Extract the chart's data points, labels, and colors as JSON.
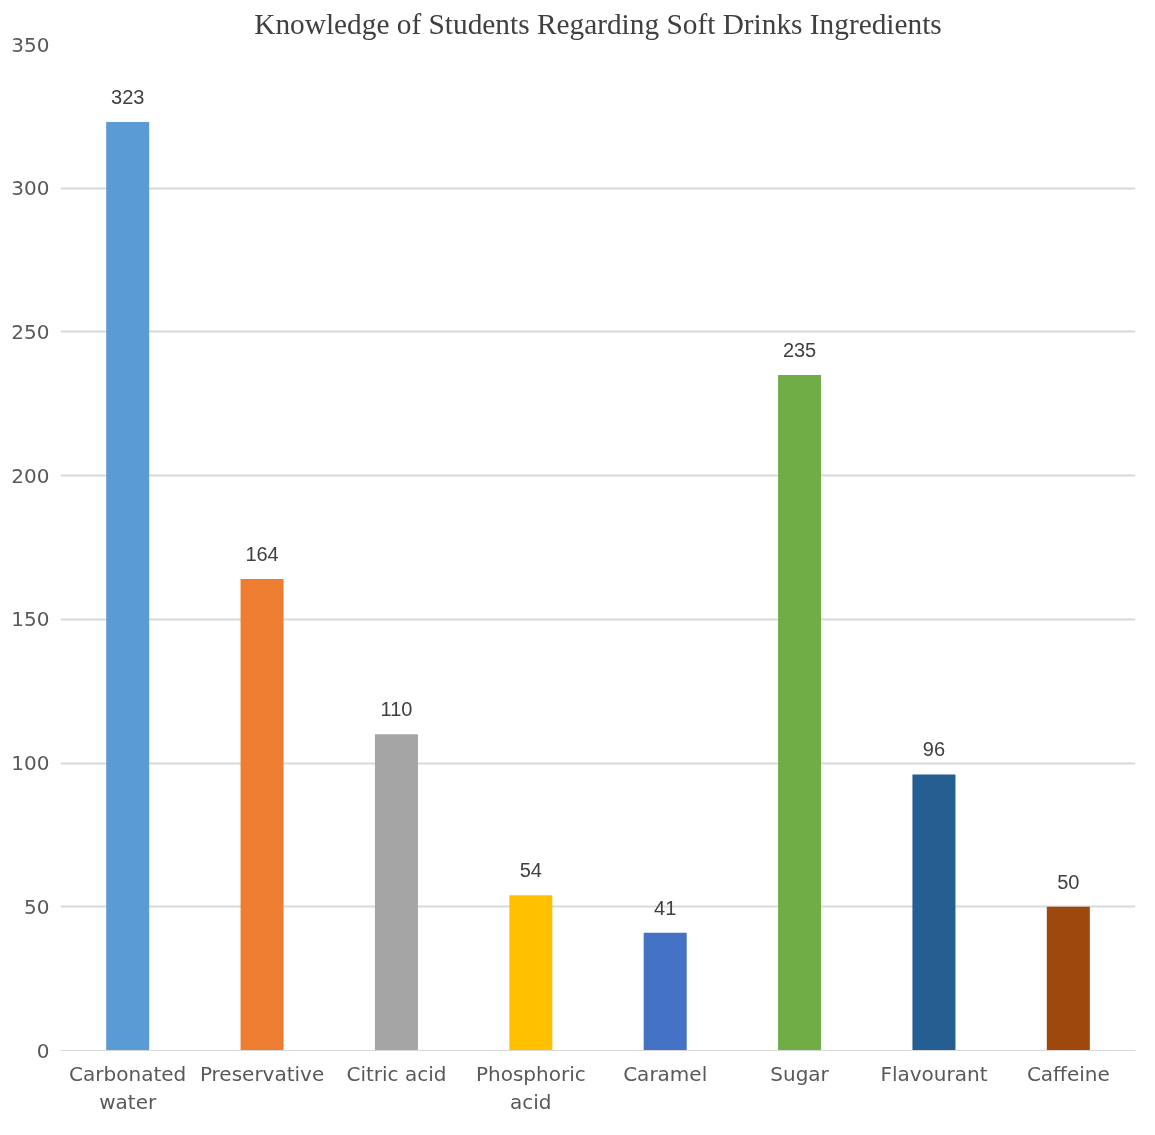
{
  "chart_data": {
    "type": "bar",
    "title": "Knowledge of Students Regarding Soft Drinks Ingredients",
    "categories": [
      "Carbonated water",
      "Preservative",
      "Citric acid",
      "Phosphoric acid",
      "Caramel",
      "Sugar",
      "Flavourant",
      "Caffeine"
    ],
    "values": [
      323,
      164,
      110,
      54,
      41,
      235,
      96,
      50
    ],
    "colors": [
      "#5b9bd5",
      "#ed7d31",
      "#a5a5a5",
      "#ffc000",
      "#4472c4",
      "#70ad47",
      "#255e91",
      "#9e480e"
    ],
    "ylim": [
      0,
      350
    ],
    "yticks": [
      0,
      50,
      100,
      150,
      200,
      250,
      300,
      350
    ],
    "grid": "y",
    "data_labels": true
  }
}
